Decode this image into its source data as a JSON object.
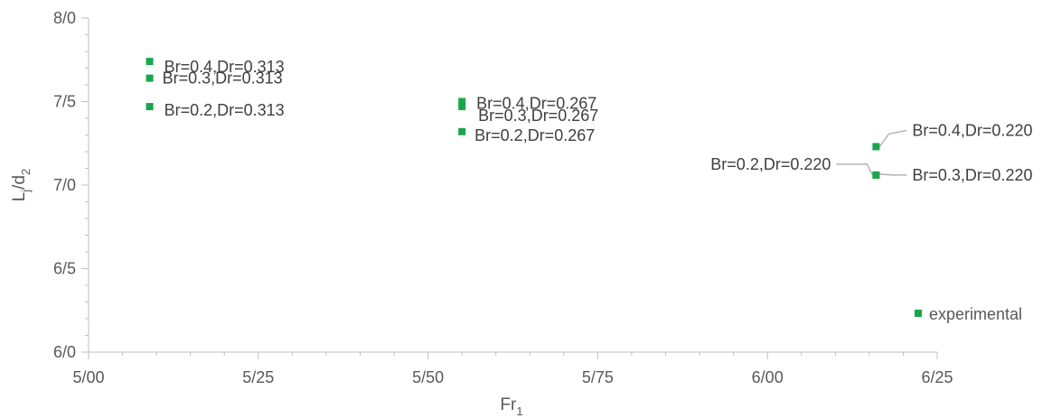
{
  "chart_data": {
    "type": "scatter",
    "xlabel": "Fr",
    "xlabel_sub": "1",
    "ylabel_main": "L",
    "ylabel_sub1": "j",
    "ylabel_mid": "/d",
    "ylabel_sub2": "2",
    "xlim": [
      5.0,
      6.25
    ],
    "ylim": [
      6.0,
      8.0
    ],
    "x_ticks": [
      5.0,
      5.25,
      5.5,
      5.75,
      6.0,
      6.25
    ],
    "x_tick_labels": [
      "5/00",
      "5/25",
      "5/50",
      "5/75",
      "6/00",
      "6/25"
    ],
    "y_ticks": [
      6.0,
      6.5,
      7.0,
      7.5,
      8.0
    ],
    "y_tick_labels": [
      "6/0",
      "6/5",
      "7/0",
      "7/5",
      "8/0"
    ],
    "grid": false,
    "legend_position": "bottom-right",
    "marker_color": "#1aa64a",
    "series": [
      {
        "name": "experimental",
        "points": [
          {
            "x": 5.09,
            "y": 7.74,
            "label": "Br=0.4,Dr=0.313"
          },
          {
            "x": 5.09,
            "y": 7.64,
            "label": "Br=0.3,Dr=0.313"
          },
          {
            "x": 5.09,
            "y": 7.47,
            "label": "Br=0.2,Dr=0.313"
          },
          {
            "x": 5.55,
            "y": 7.5,
            "label": "Br=0.4,Dr=0.267"
          },
          {
            "x": 5.55,
            "y": 7.47,
            "label": "Br=0.3,Dr=0.267"
          },
          {
            "x": 5.55,
            "y": 7.32,
            "label": "Br=0.2,Dr=0.267"
          },
          {
            "x": 6.16,
            "y": 7.23,
            "label": "Br=0.4,Dr=0.220"
          },
          {
            "x": 6.16,
            "y": 7.06,
            "label": "Br=0.3,Dr=0.220"
          },
          {
            "x": 6.16,
            "y": 7.06,
            "label": "Br=0.2,Dr=0.220"
          }
        ]
      }
    ]
  }
}
